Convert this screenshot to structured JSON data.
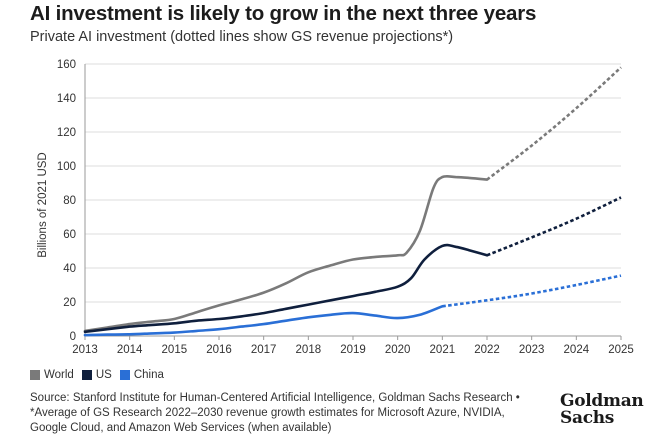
{
  "header": {
    "title": "AI investment is likely to grow in the next three years",
    "subtitle": "Private AI investment (dotted lines show GS revenue projections*)"
  },
  "chart_data": {
    "type": "line",
    "title": "AI investment is likely to grow in the next three years",
    "subtitle": "Private AI investment (dotted lines show GS revenue projections*)",
    "xlabel": "",
    "ylabel": "Billions of 2021 USD",
    "xlim": [
      2013,
      2025
    ],
    "ylim": [
      0,
      160
    ],
    "x_ticks": [
      "2013",
      "2014",
      "2015",
      "2016",
      "2017",
      "2018",
      "2019",
      "2020",
      "2021",
      "2022",
      "2023",
      "2024",
      "2025"
    ],
    "y_ticks": [
      "0",
      "20",
      "40",
      "60",
      "80",
      "100",
      "120",
      "140",
      "160"
    ],
    "grid": "horizontal",
    "legend_position": "bottom-left",
    "projection_start": 2022,
    "series": [
      {
        "name": "World",
        "color": "#7a7a7a",
        "x": [
          2013,
          2013.5,
          2014,
          2014.5,
          2015,
          2015.5,
          2016,
          2016.5,
          2017,
          2017.5,
          2018,
          2018.5,
          2019,
          2019.5,
          2020,
          2020.2,
          2020.5,
          2020.8,
          2021,
          2021.3,
          2021.6,
          2022
        ],
        "values": [
          3,
          5,
          7,
          8.5,
          10,
          14,
          18,
          21.5,
          25.5,
          31,
          37.5,
          41.5,
          45,
          46.5,
          47.5,
          49,
          62,
          87,
          93.5,
          93.5,
          93,
          92
        ],
        "projection": {
          "x": [
            2022,
            2023,
            2024,
            2025
          ],
          "values": [
            92,
            112,
            134,
            158
          ]
        }
      },
      {
        "name": "US",
        "color": "#0f1f3d",
        "x": [
          2013,
          2013.5,
          2014,
          2014.5,
          2015,
          2015.5,
          2016,
          2016.5,
          2017,
          2017.5,
          2018,
          2018.5,
          2019,
          2019.5,
          2020,
          2020.3,
          2020.6,
          2021,
          2021.3,
          2021.6,
          2022
        ],
        "values": [
          2.5,
          4,
          5.5,
          6.5,
          7.5,
          9,
          10,
          11.5,
          13.5,
          16,
          18.5,
          21,
          23.5,
          26,
          29,
          34,
          45,
          53,
          52.5,
          50.5,
          47.5
        ],
        "projection": {
          "x": [
            2022,
            2023,
            2024,
            2025
          ],
          "values": [
            47.5,
            58,
            69,
            81.5
          ]
        }
      },
      {
        "name": "China",
        "color": "#2a6fd6",
        "x": [
          2013,
          2013.5,
          2014,
          2014.5,
          2015,
          2015.5,
          2016,
          2016.5,
          2017,
          2017.5,
          2018,
          2018.5,
          2019,
          2019.5,
          2020,
          2020.5,
          2021
        ],
        "values": [
          0.5,
          0.8,
          1,
          1.5,
          2,
          3,
          4,
          5.5,
          7,
          9,
          11,
          12.5,
          13.5,
          12,
          10.5,
          12.5,
          17.5
        ],
        "projection": {
          "x": [
            2021,
            2022,
            2023,
            2024,
            2025
          ],
          "values": [
            17.5,
            21,
            25,
            30,
            35.5
          ]
        }
      }
    ]
  },
  "legend": {
    "items": [
      {
        "label": "World",
        "color": "#7a7a7a"
      },
      {
        "label": "US",
        "color": "#0f1f3d"
      },
      {
        "label": "China",
        "color": "#2a6fd6"
      }
    ]
  },
  "footer": {
    "source_line1": "Source: Stanford Institute for Human-Centered Artificial Intelligence, Goldman Sachs Research •",
    "source_line2": "*Average of GS Research 2022–2030 revenue growth estimates for Microsoft Azure, NVIDIA,",
    "source_line3": "Google Cloud, and Amazon Web Services (when available)"
  },
  "logo": {
    "line1": "Goldman",
    "line2": "Sachs"
  }
}
